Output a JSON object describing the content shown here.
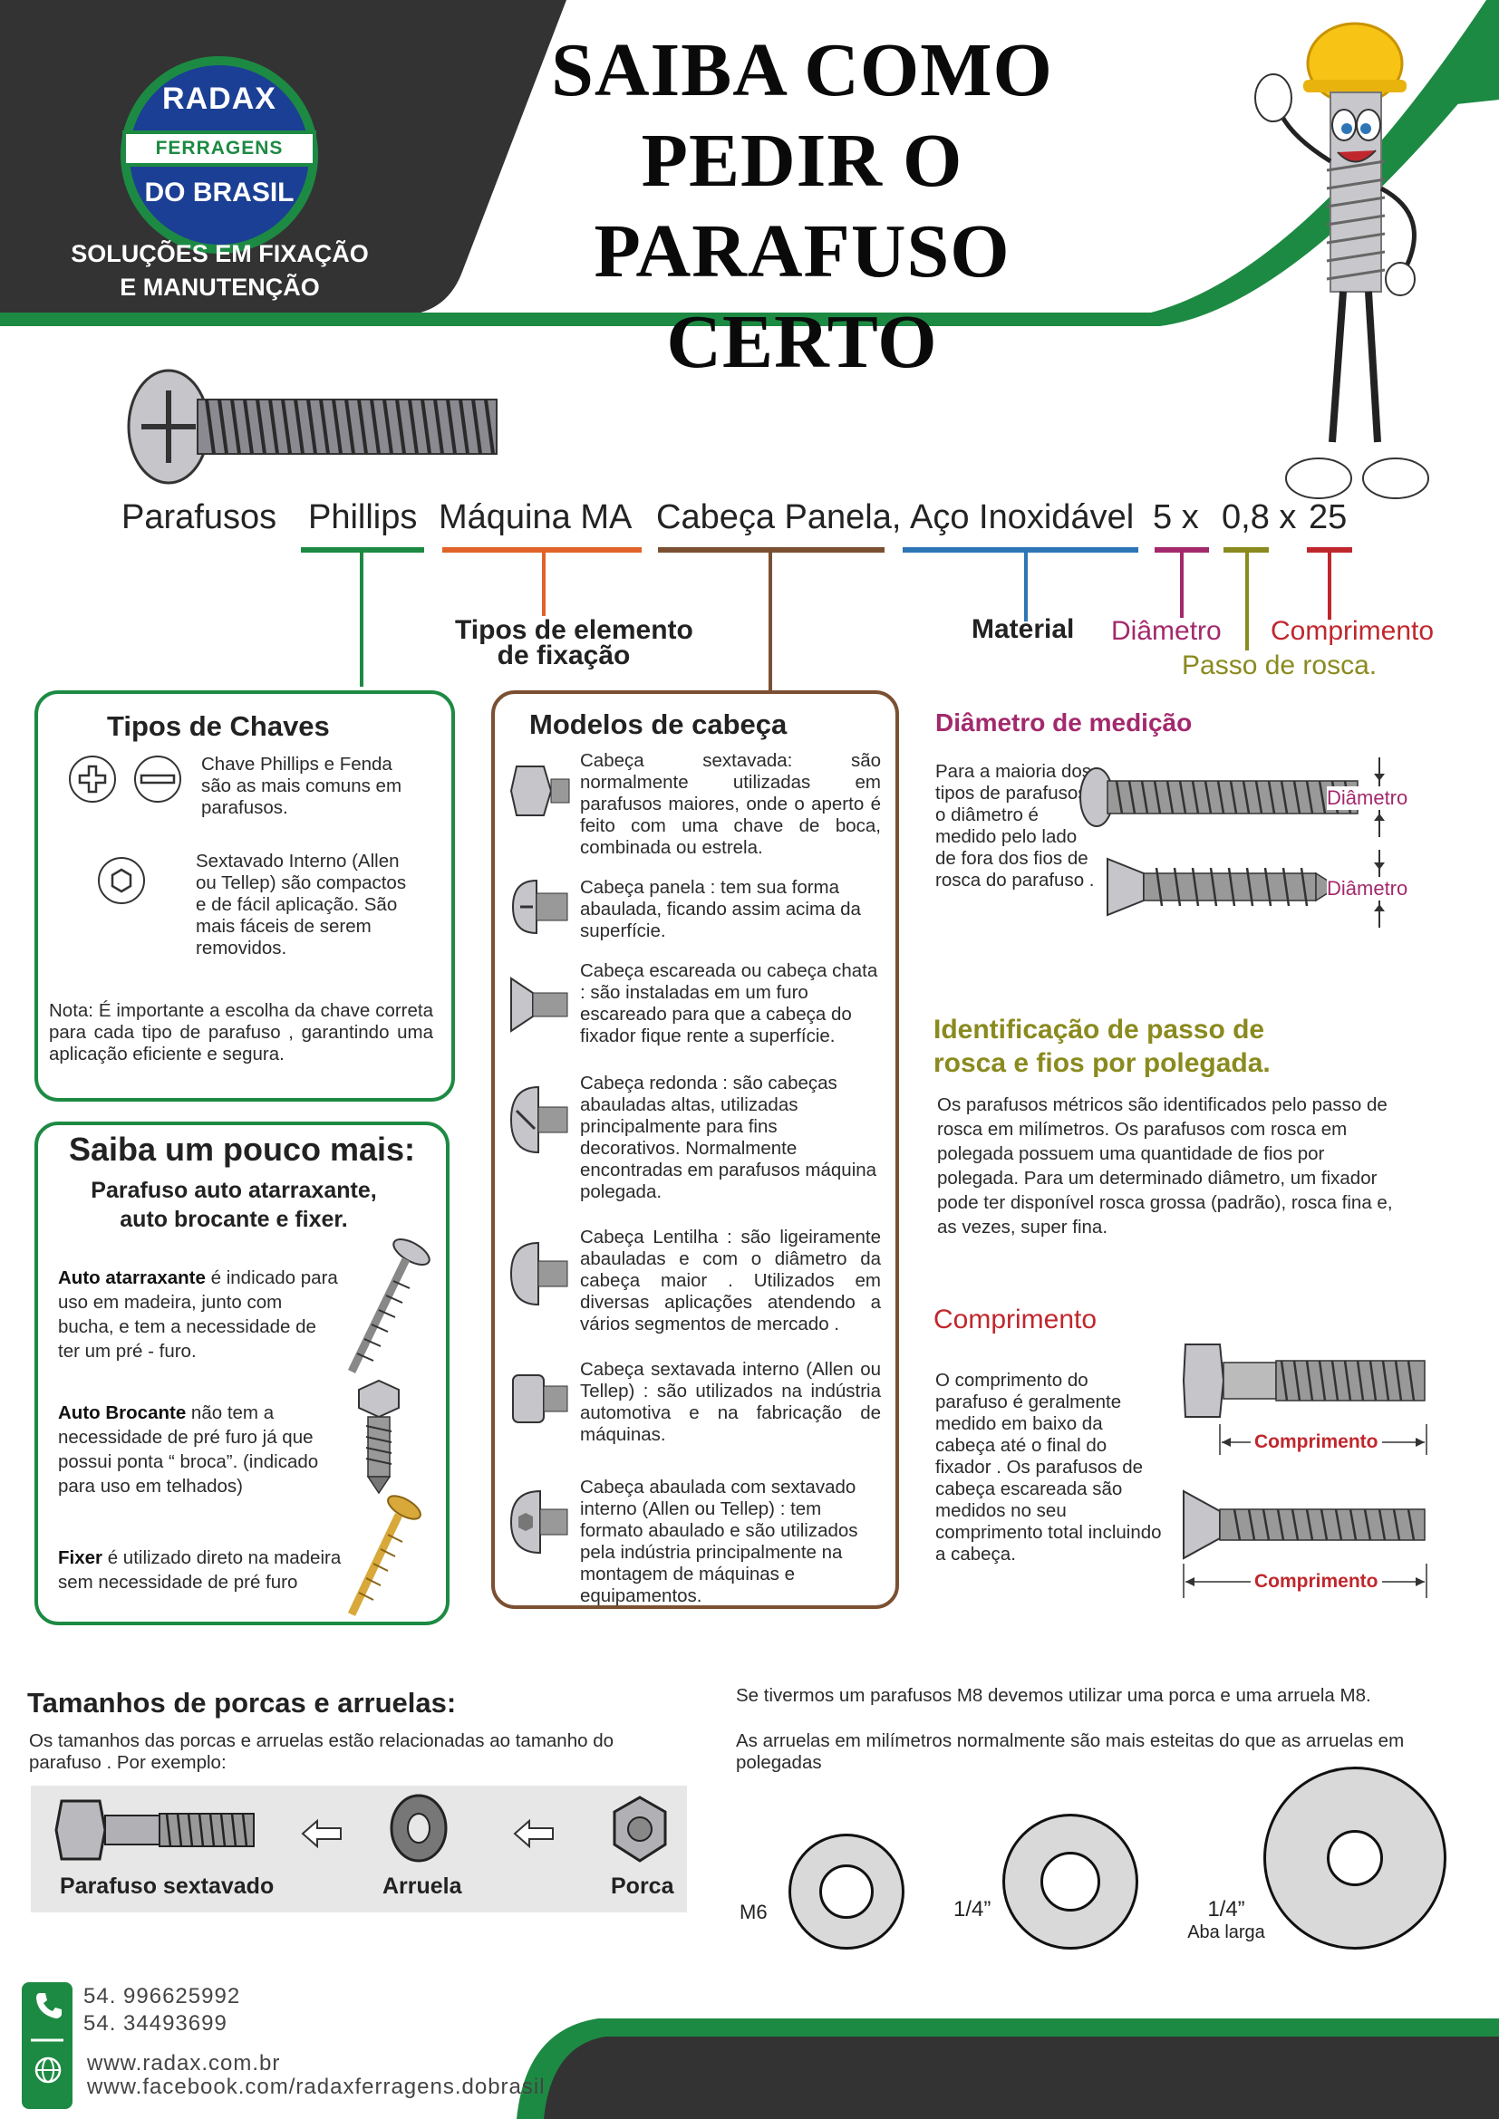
{
  "logo": {
    "top": "RADAX",
    "band": "FERRAGENS",
    "bottom": "DO BRASIL",
    "slogan_line1": "SOLUÇÕES EM FIXAÇÃO",
    "slogan_line2": "E MANUTENÇÃO"
  },
  "title": {
    "line1": "SAIBA COMO",
    "line2": "PEDIR O",
    "line3": "PARAFUSO CERTO"
  },
  "colors": {
    "green": "#1d8a43",
    "dark": "#333333",
    "orange": "#e0632a",
    "brown": "#7b5032",
    "blue": "#2e75b6",
    "magenta": "#a3296c",
    "olive": "#8a8a1f",
    "red": "#c0272d"
  },
  "spec": {
    "parafusos": "Parafusos",
    "phillips": "Phillips",
    "maquina": "Máquina MA",
    "cabeca": "Cabeça Panela,",
    "aco": "Aço Inoxidável",
    "d5": "5 x",
    "d08": "0,8 x",
    "d25": "25",
    "lbl_tipos1": "Tipos de elemento",
    "lbl_tipos2": "de fixação",
    "lbl_material": "Material",
    "lbl_diametro": "Diâmetro",
    "lbl_comprimento": "Comprimento",
    "lbl_passo": "Passo de rosca."
  },
  "chaves": {
    "title": "Tipos de Chaves",
    "phillips_text": "Chave Phillips e Fenda são as mais comuns em parafusos.",
    "allen_text": "Sextavado Interno (Allen ou Tellep) são compactos e de fácil aplicação. São mais fáceis de serem removidos.",
    "nota": "Nota: É importante a escolha da chave correta para cada tipo de parafuso , garantindo uma aplicação eficiente e segura."
  },
  "saiba": {
    "title": "Saiba um pouco mais:",
    "subtitle1": "Parafuso auto atarraxante,",
    "subtitle2": "auto brocante e fixer.",
    "auto_bold": "Auto atarraxante",
    "auto_text": " é indicado para uso em madeira, junto com bucha, e tem a necessidade de ter um pré - furo.",
    "broc_bold": "Auto Brocante",
    "broc_text": " não tem a necessidade de pré furo já que possui ponta “ broca”. (indicado para uso em telhados)",
    "fixer_bold": "Fixer",
    "fixer_text": " é utilizado direto na madeira sem necessidade de pré furo"
  },
  "modelos": {
    "title": "Modelos de cabeça",
    "items": [
      "Cabeça sextavada: são normalmente utilizadas em parafusos maiores, onde o aperto é feito com uma chave de boca, combinada ou estrela.",
      "Cabeça panela : tem sua forma abaulada, ficando assim acima da superfície.",
      "Cabeça escareada ou cabeça chata : são instaladas em um furo escareado para que a cabeça do fixador fique rente a superfície.",
      "Cabeça redonda : são cabeças abauladas altas, utilizadas principalmente para fins decorativos. Normalmente encontradas em parafusos máquina polegada.",
      "Cabeça Lentilha : são ligeiramente abauladas e com o diâmetro da cabeça maior . Utilizados em diversas aplicações atendendo a vários segmentos de mercado .",
      "Cabeça sextavada interno (Allen ou Tellep) : são utilizados na indústria automotiva e na fabricação de máquinas.",
      "Cabeça abaulada com sextavado interno (Allen ou Tellep) : tem formato abaulado e são utilizados pela indústria principalmente na montagem de máquinas e equipamentos."
    ]
  },
  "diametro": {
    "title": "Diâmetro de medição",
    "text": "Para a maioria dos tipos de parafusos, o diâmetro é medido pelo lado de fora dos fios de rosca do parafuso .",
    "lbl1": "Diâmetro",
    "lbl2": "Diâmetro"
  },
  "passo": {
    "title1": "Identificação de passo de",
    "title2": "rosca e fios por polegada.",
    "text": "Os parafusos métricos são identificados pelo passo de rosca em milímetros. Os parafusos com rosca em polegada possuem uma quantidade de fios por polegada. Para um determinado diâmetro, um fixador pode ter disponível rosca grossa (padrão), rosca fina e, as vezes, super fina."
  },
  "comprimento": {
    "title": "Comprimento",
    "text": "O comprimento do parafuso é geralmente medido em baixo da cabeça até o final do fixador . Os parafusos de cabeça escareada são medidos no seu comprimento total incluindo a cabeça.",
    "lbl1": "Comprimento",
    "lbl2": "Comprimento"
  },
  "porcas": {
    "title": "Tamanhos de porcas e arruelas:",
    "text": "Os tamanhos das porcas e arruelas estão relacionadas ao tamanho do parafuso . Por exemplo:",
    "lbl_parafuso": "Parafuso sextavado",
    "lbl_arruela": "Arruela",
    "lbl_porca": "Porca",
    "m8_text": "Se tivermos um parafusos M8 devemos utilizar uma porca e uma arruela M8.",
    "estreitas_text": "As arruelas em milímetros normalmente são mais esteitas do que as arruelas em polegadas",
    "w1": "M6",
    "w2": "1/4”",
    "w3a": "1/4”",
    "w3b": "Aba larga"
  },
  "contato": {
    "phone1": "54. 996625992",
    "phone2": "54. 34493699",
    "site": "www.radax.com.br",
    "facebook": "www.facebook.com/radaxferragens.dobrasil"
  }
}
